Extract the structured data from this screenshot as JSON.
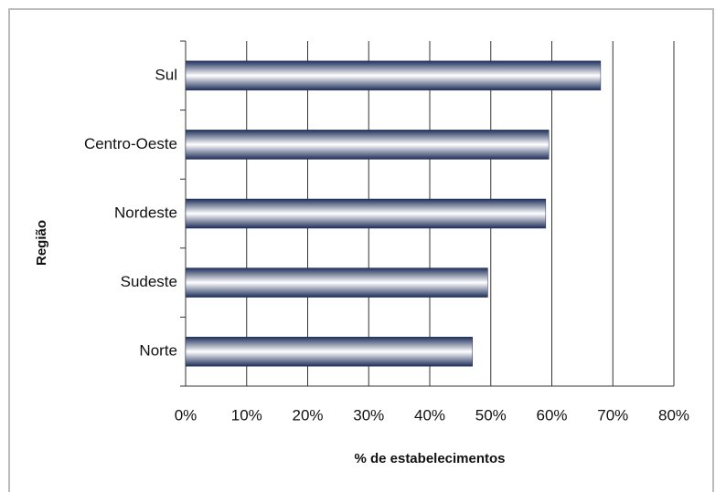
{
  "chart_data": {
    "type": "bar",
    "orientation": "horizontal",
    "xlabel": "% de estabelecimentos",
    "ylabel": "Região",
    "categories": [
      "Sul",
      "Centro-Oeste",
      "Nordeste",
      "Sudeste",
      "Norte"
    ],
    "values": [
      68,
      59.5,
      59,
      49.5,
      47
    ],
    "color": "#1f2f5a",
    "xlim": [
      0,
      80
    ],
    "xticks": [
      {
        "value": 0,
        "label": "0%"
      },
      {
        "value": 10,
        "label": "10%"
      },
      {
        "value": 20,
        "label": "20%"
      },
      {
        "value": 30,
        "label": "30%"
      },
      {
        "value": 40,
        "label": "40%"
      },
      {
        "value": 50,
        "label": "50%"
      },
      {
        "value": 60,
        "label": "60%"
      },
      {
        "value": 70,
        "label": "70%"
      },
      {
        "value": 80,
        "label": "80%"
      }
    ],
    "grid": true
  }
}
